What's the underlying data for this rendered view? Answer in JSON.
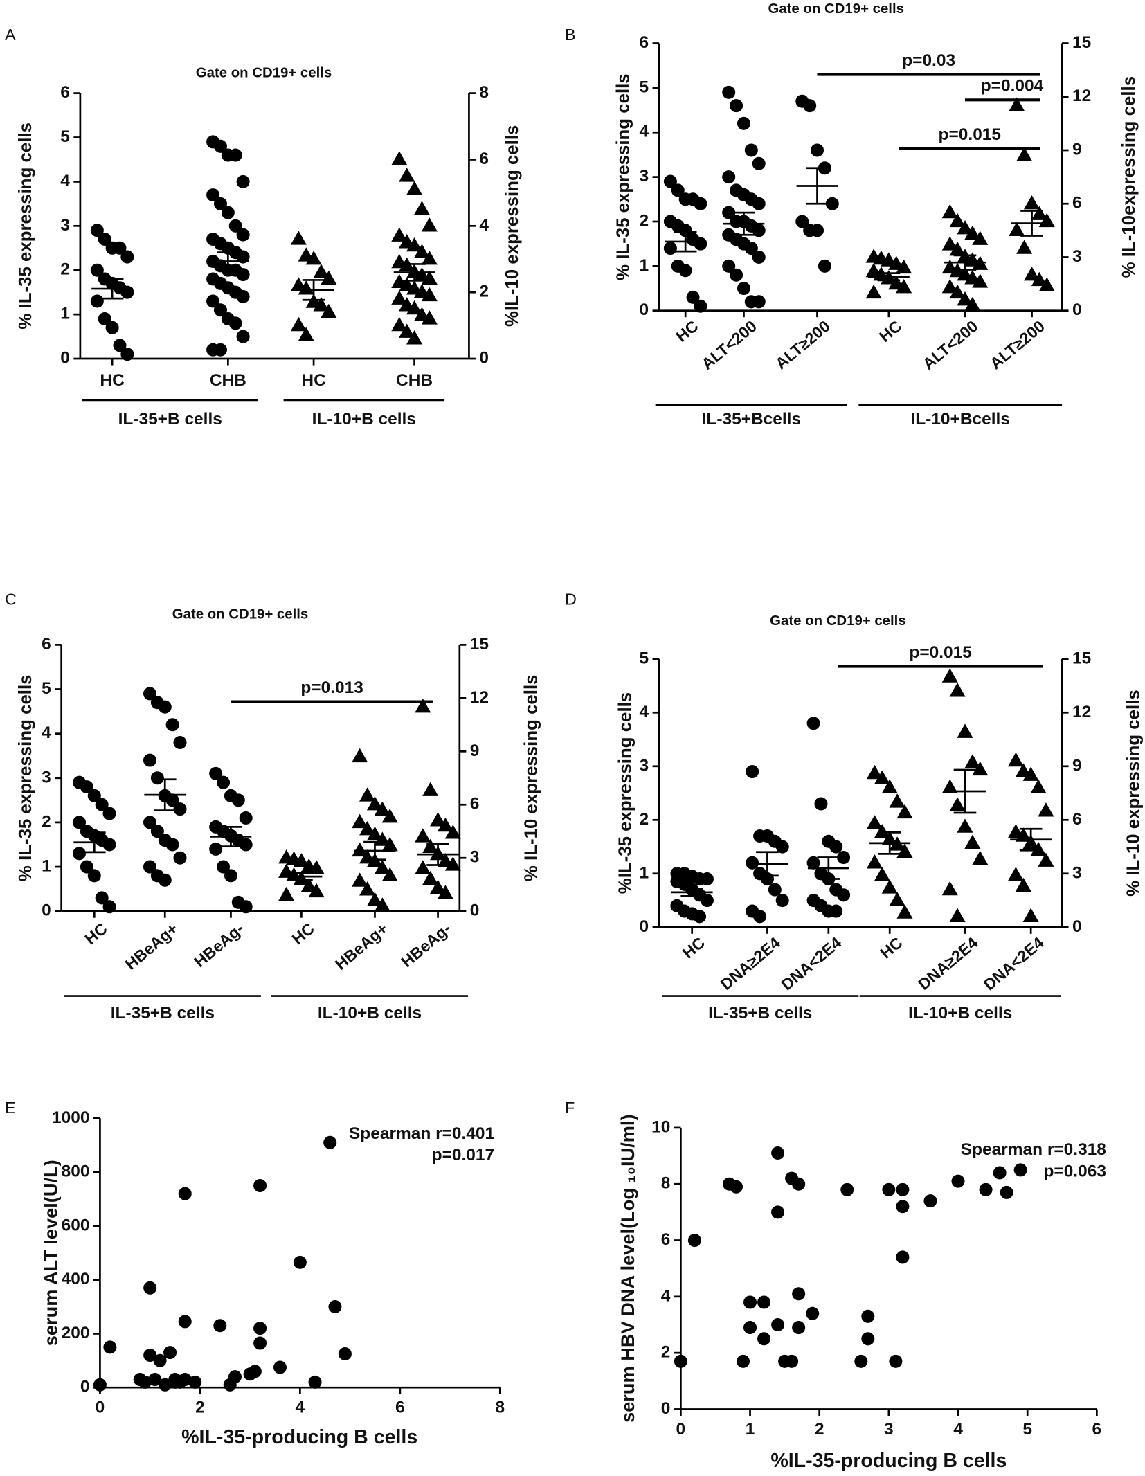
{
  "chart_data": [
    {
      "type": "dotplot",
      "label": "A",
      "title": "Gate on CD19+ cells",
      "y_label": "% IL-35 expressing cells",
      "y2_label": "%IL-10 expressing cells",
      "ylim": [
        0,
        6
      ],
      "yticks": [
        0,
        1,
        2,
        3,
        4,
        5,
        6
      ],
      "y2lim": [
        0,
        8
      ],
      "y2ticks": [
        0,
        2,
        4,
        6,
        8
      ],
      "groups": [
        {
          "label": "IL-35+B cells",
          "series": [
            {
              "category": "HC",
              "axis": "y",
              "marker": "circle",
              "values": [
                2.9,
                2.7,
                2.5,
                2.5,
                2.3,
                2.0,
                1.8,
                1.7,
                1.6,
                1.5,
                1.3,
                0.9,
                0.7,
                0.3,
                0.1
              ],
              "mean": 1.58,
              "sem": 0.22
            },
            {
              "category": "CHB",
              "axis": "y",
              "marker": "circle",
              "values": [
                4.9,
                4.8,
                4.6,
                4.6,
                4.0,
                3.7,
                3.5,
                3.3,
                3.0,
                2.8,
                2.7,
                2.6,
                2.5,
                2.4,
                2.3,
                2.2,
                2.1,
                2.0,
                2.0,
                1.9,
                1.8,
                1.7,
                1.6,
                1.5,
                1.4,
                1.3,
                1.1,
                0.9,
                0.8,
                0.5,
                0.2,
                0.2
              ],
              "mean": 2.2,
              "sem": 0.2
            }
          ]
        },
        {
          "label": "IL-10+B cells",
          "series": [
            {
              "category": "HC",
              "axis": "y2",
              "marker": "triangle",
              "values": [
                3.6,
                3.1,
                3.0,
                2.6,
                2.4,
                2.2,
                2.1,
                1.7,
                1.6,
                1.4,
                1.0,
                0.7
              ],
              "mean": 2.07,
              "sem": 0.3
            },
            {
              "category": "CHB",
              "axis": "y2",
              "marker": "triangle",
              "values": [
                6.0,
                5.5,
                5.1,
                4.5,
                4.0,
                3.7,
                3.5,
                3.4,
                3.2,
                3.0,
                2.9,
                2.8,
                2.6,
                2.5,
                2.4,
                2.3,
                2.2,
                2.1,
                2.0,
                1.9,
                1.8,
                1.6,
                1.5,
                1.3,
                1.2,
                1.0,
                0.8,
                0.6
              ],
              "mean": 2.6,
              "sem": 0.25
            }
          ]
        }
      ],
      "annotations": []
    },
    {
      "type": "dotplot",
      "label": "B",
      "title": "Gate on CD19+ cells",
      "y_label": "% IL-35 expressing cells",
      "y2_label": "% IL-10expressing cells",
      "ylim": [
        0,
        6
      ],
      "yticks": [
        0,
        1,
        2,
        3,
        4,
        5,
        6
      ],
      "y2lim": [
        0,
        15
      ],
      "y2ticks": [
        0,
        3,
        6,
        9,
        12,
        15
      ],
      "groups": [
        {
          "label": "IL-35+Bcells",
          "series": [
            {
              "category": "HC",
              "axis": "y",
              "marker": "circle",
              "values": [
                2.9,
                2.7,
                2.5,
                2.5,
                2.4,
                2.0,
                1.9,
                1.8,
                1.6,
                1.5,
                1.4,
                1.0,
                0.9,
                0.3,
                0.1
              ],
              "mean": 1.55,
              "sem": 0.22
            },
            {
              "category": "ALT<200",
              "axis": "y",
              "marker": "circle",
              "values": [
                4.9,
                4.6,
                4.2,
                3.6,
                3.3,
                3.0,
                2.7,
                2.6,
                2.5,
                2.4,
                2.2,
                2.0,
                2.0,
                1.9,
                1.8,
                1.7,
                1.6,
                1.5,
                1.4,
                1.2,
                1.0,
                0.8,
                0.5,
                0.2,
                0.2
              ],
              "mean": 1.95,
              "sem": 0.25
            },
            {
              "category": "ALT≥200",
              "axis": "y",
              "marker": "circle",
              "values": [
                4.7,
                4.6,
                3.6,
                3.2,
                2.4,
                2.0,
                1.8,
                1.8,
                1.0
              ],
              "mean": 2.8,
              "sem": 0.4
            }
          ]
        },
        {
          "label": "IL-10+Bcells",
          "series": [
            {
              "category": "HC",
              "axis": "y2",
              "marker": "triangle",
              "values": [
                3.0,
                2.9,
                2.8,
                2.6,
                2.4,
                2.2,
                2.0,
                1.8,
                1.5,
                1.3,
                1.0
              ],
              "mean": 1.9,
              "sem": 0.2
            },
            {
              "category": "ALT<200",
              "axis": "y2",
              "marker": "triangle",
              "values": [
                5.5,
                5.0,
                4.6,
                4.3,
                4.0,
                3.7,
                3.4,
                3.0,
                2.8,
                2.6,
                2.4,
                2.2,
                2.0,
                1.8,
                1.6,
                1.3,
                1.0,
                0.6,
                0.3
              ],
              "mean": 2.7,
              "sem": 0.4
            },
            {
              "category": "ALT≥200",
              "axis": "y2",
              "marker": "triangle",
              "values": [
                11.5,
                8.7,
                6.0,
                5.4,
                5.0,
                4.5,
                3.5,
                2.0,
                1.7,
                1.4
              ],
              "mean": 4.9,
              "sem": 0.7
            }
          ]
        }
      ],
      "annotations": [
        {
          "text": "p=0.03",
          "y": 5.3
        },
        {
          "text": "p=0.004",
          "y": 4.73
        },
        {
          "text": "p=0.015",
          "y": 3.64
        }
      ]
    },
    {
      "type": "dotplot",
      "label": "C",
      "title": "Gate on CD19+ cells",
      "y_label": "% IL-35 expressing cells",
      "y2_label": "% IL-10 expressing cells",
      "ylim": [
        0,
        6
      ],
      "yticks": [
        0,
        1,
        2,
        3,
        4,
        5,
        6
      ],
      "y2lim": [
        0,
        15
      ],
      "y2ticks": [
        0,
        3,
        6,
        9,
        12,
        15
      ],
      "groups": [
        {
          "label": "IL-35+B cells",
          "series": [
            {
              "category": "HC",
              "axis": "y",
              "marker": "circle",
              "values": [
                2.9,
                2.8,
                2.6,
                2.4,
                2.2,
                2.0,
                1.8,
                1.7,
                1.6,
                1.5,
                1.3,
                1.0,
                0.8,
                0.3,
                0.1
              ],
              "mean": 1.55,
              "sem": 0.22
            },
            {
              "category": "HBeAg+",
              "axis": "y",
              "marker": "circle",
              "values": [
                4.9,
                4.7,
                4.6,
                4.2,
                3.8,
                3.4,
                3.0,
                2.6,
                2.5,
                2.3,
                2.0,
                1.8,
                1.6,
                1.5,
                1.2,
                1.0,
                0.8,
                0.7
              ],
              "mean": 2.62,
              "sem": 0.35
            },
            {
              "category": "HBeAg-",
              "axis": "y",
              "marker": "circle",
              "values": [
                3.1,
                2.9,
                2.6,
                2.5,
                2.1,
                1.9,
                1.8,
                1.7,
                1.6,
                1.5,
                1.4,
                1.0,
                0.8,
                0.2,
                0.1
              ],
              "mean": 1.68,
              "sem": 0.22
            }
          ]
        },
        {
          "label": "IL-10+B cells",
          "series": [
            {
              "category": "HC",
              "axis": "y2",
              "marker": "triangle",
              "values": [
                3.0,
                2.9,
                2.8,
                2.5,
                2.4,
                2.2,
                2.0,
                1.8,
                1.4,
                1.1,
                0.9
              ],
              "mean": 1.95,
              "sem": 0.2
            },
            {
              "category": "HBeAg+",
              "axis": "y2",
              "marker": "triangle",
              "values": [
                8.7,
                6.5,
                6.0,
                5.7,
                5.3,
                5.0,
                4.6,
                4.3,
                4.0,
                3.7,
                3.4,
                3.0,
                2.8,
                2.4,
                2.0,
                1.7,
                1.2,
                0.6,
                0.3
              ],
              "mean": 3.4,
              "sem": 0.5
            },
            {
              "category": "HBeAg-",
              "axis": "y2",
              "marker": "triangle",
              "values": [
                11.5,
                6.8,
                5.1,
                4.8,
                4.4,
                4.2,
                3.6,
                3.2,
                2.8,
                2.6,
                2.4,
                1.8,
                1.3,
                1.0
              ],
              "mean": 3.2,
              "sem": 0.6
            }
          ]
        }
      ],
      "annotations": [
        {
          "text": "p=0.013",
          "y": 4.72
        }
      ]
    },
    {
      "type": "dotplot",
      "label": "D",
      "title": "Gate on CD19+ cells",
      "y_label": "%IL-35 expressing cells",
      "y2_label": "% IL-10 expressing cells",
      "ylim": [
        0,
        5
      ],
      "yticks": [
        0,
        1,
        2,
        3,
        4,
        5
      ],
      "y2lim": [
        0,
        15
      ],
      "y2ticks": [
        0,
        3,
        6,
        9,
        12,
        15
      ],
      "groups": [
        {
          "label": "IL-35+B cells",
          "series": [
            {
              "category": "HC",
              "axis": "y",
              "marker": "circle",
              "values": [
                1.0,
                1.0,
                0.95,
                0.9,
                0.9,
                0.85,
                0.8,
                0.7,
                0.6,
                0.5,
                0.4,
                0.3,
                0.25,
                0.2
              ],
              "mean": 0.65,
              "sem": 0.07
            },
            {
              "category": "DNA≥2E4",
              "axis": "y",
              "marker": "circle",
              "values": [
                2.9,
                1.7,
                1.7,
                1.6,
                1.5,
                1.2,
                1.0,
                0.9,
                0.7,
                0.5,
                0.3,
                0.2
              ],
              "mean": 1.18,
              "sem": 0.22
            },
            {
              "category": "DNA<2E4",
              "axis": "y",
              "marker": "circle",
              "values": [
                3.8,
                2.3,
                1.6,
                1.5,
                1.3,
                1.2,
                1.0,
                0.9,
                0.7,
                0.6,
                0.5,
                0.4,
                0.3,
                0.3
              ],
              "mean": 1.1,
              "sem": 0.2
            }
          ]
        },
        {
          "label": "IL-10+B cells",
          "series": [
            {
              "category": "HC",
              "axis": "y2",
              "marker": "triangle",
              "values": [
                8.6,
                8.3,
                7.8,
                7.0,
                6.4,
                5.8,
                5.3,
                4.9,
                4.6,
                4.2,
                3.6,
                2.9,
                2.2,
                1.5,
                0.8
              ],
              "mean": 4.7,
              "sem": 0.6
            },
            {
              "category": "DNA≥2E4",
              "axis": "y2",
              "marker": "triangle",
              "values": [
                14.0,
                13.2,
                10.9,
                9.2,
                8.8,
                7.8,
                6.8,
                5.6,
                4.7,
                3.8,
                2.1,
                0.6
              ],
              "mean": 7.6,
              "sem": 1.2
            },
            {
              "category": "DNA<2E4",
              "axis": "y2",
              "marker": "triangle",
              "values": [
                9.3,
                8.7,
                8.5,
                7.8,
                6.5,
                5.3,
                5.1,
                4.7,
                4.3,
                3.7,
                2.9,
                2.3,
                0.6
              ],
              "mean": 4.9,
              "sem": 0.6
            }
          ]
        }
      ],
      "annotations": [
        {
          "text": "p=0.015",
          "y": 4.86
        }
      ]
    },
    {
      "type": "scatter",
      "label": "E",
      "x_label": "%IL-35-producing B cells",
      "y_label": "serum ALT level(U/L)",
      "x": [
        0,
        0.2,
        0.8,
        0.9,
        1.0,
        1.0,
        1.1,
        1.2,
        1.3,
        1.4,
        1.5,
        1.5,
        1.6,
        1.7,
        1.7,
        1.7,
        1.9,
        2.4,
        2.6,
        2.7,
        3.0,
        3.1,
        3.2,
        3.2,
        3.2,
        3.6,
        4.0,
        4.3,
        4.6,
        4.7,
        4.9
      ],
      "values": [
        10,
        150,
        30,
        20,
        370,
        120,
        30,
        100,
        10,
        130,
        30,
        20,
        20,
        720,
        245,
        30,
        20,
        230,
        10,
        40,
        50,
        60,
        750,
        220,
        165,
        75,
        465,
        20,
        910,
        300,
        125
      ],
      "xlim": [
        0,
        8
      ],
      "xticks": [
        0,
        2,
        4,
        6,
        8
      ],
      "ylim": [
        0,
        1000
      ],
      "yticks": [
        0,
        200,
        400,
        600,
        800,
        1000
      ],
      "annotations": [
        "Spearman r=0.401",
        "p=0.017"
      ]
    },
    {
      "type": "scatter",
      "label": "F",
      "x_label": "%IL-35-producing B cells",
      "y_label": "serum HBV DNA level(Log ₁₀IU/ml)",
      "x": [
        0,
        0.2,
        0.7,
        0.8,
        0.9,
        1.0,
        1.0,
        1.2,
        1.2,
        1.4,
        1.4,
        1.4,
        1.5,
        1.6,
        1.6,
        1.7,
        1.7,
        1.7,
        1.9,
        2.4,
        2.6,
        2.7,
        2.7,
        3.0,
        3.1,
        3.2,
        3.2,
        3.2,
        3.6,
        4.0,
        4.4,
        4.6,
        4.7,
        4.9
      ],
      "values": [
        1.7,
        6.0,
        8.0,
        7.9,
        1.7,
        3.8,
        2.9,
        3.8,
        2.5,
        9.1,
        7.0,
        3.0,
        1.7,
        1.7,
        8.2,
        8.0,
        4.1,
        2.9,
        3.4,
        7.8,
        1.7,
        3.3,
        2.5,
        7.8,
        1.7,
        7.8,
        7.2,
        5.4,
        7.4,
        8.1,
        7.8,
        8.4,
        7.7,
        8.5
      ],
      "xlim": [
        0,
        6
      ],
      "xticks": [
        0,
        1,
        2,
        3,
        4,
        5,
        6
      ],
      "ylim": [
        0,
        10
      ],
      "yticks": [
        0,
        2,
        4,
        6,
        8,
        10
      ],
      "annotations": [
        "Spearman r=0.318",
        "p=0.063"
      ]
    }
  ]
}
